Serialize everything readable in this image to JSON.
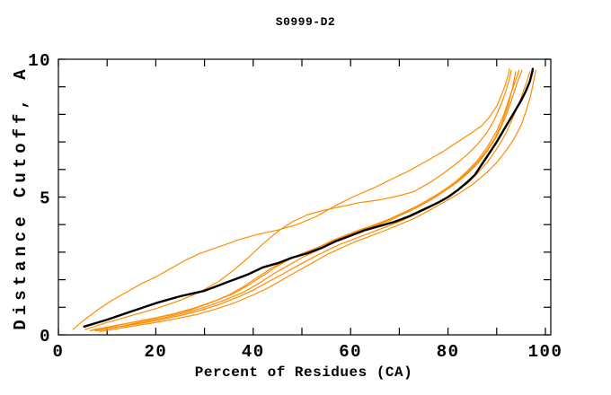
{
  "chart_data": {
    "type": "line",
    "title": "S0999-D2",
    "xlabel": "Percent of Residues (CA)",
    "ylabel": "Distance Cutoff, A",
    "xlim": [
      0,
      100
    ],
    "ylim": [
      0,
      10
    ],
    "xticks_major": [
      0,
      20,
      40,
      60,
      80,
      100
    ],
    "xticks_minor_step": 10,
    "yticks_major": [
      0,
      5,
      10
    ],
    "yticks_minor_step": 1,
    "grid": false,
    "legend": "none",
    "colors": {
      "model_curve": "#FF8C00",
      "reference_curve": "#000000",
      "axis": "#000000",
      "background": "#FFFFFF"
    },
    "series": [
      {
        "name": "orange-curve-1-outlier-high",
        "color": "#FF8C00",
        "stroke_width": 1.2,
        "points": [
          [
            3,
            0.2
          ],
          [
            5,
            0.5
          ],
          [
            8,
            0.9
          ],
          [
            11,
            1.25
          ],
          [
            14,
            1.55
          ],
          [
            17,
            1.85
          ],
          [
            20,
            2.1
          ],
          [
            23,
            2.4
          ],
          [
            26,
            2.7
          ],
          [
            29,
            2.95
          ],
          [
            33,
            3.2
          ],
          [
            37,
            3.45
          ],
          [
            41,
            3.65
          ],
          [
            45,
            3.8
          ],
          [
            49,
            4.0
          ],
          [
            53,
            4.3
          ],
          [
            57,
            4.7
          ],
          [
            61,
            5.05
          ],
          [
            65,
            5.35
          ],
          [
            69,
            5.7
          ],
          [
            72,
            5.95
          ],
          [
            76,
            6.35
          ],
          [
            79,
            6.65
          ],
          [
            82,
            7.0
          ],
          [
            85,
            7.35
          ],
          [
            87,
            7.6
          ],
          [
            88.5,
            7.9
          ],
          [
            90,
            8.3
          ],
          [
            91,
            8.7
          ],
          [
            91.8,
            9.1
          ],
          [
            92.4,
            9.45
          ],
          [
            92.6,
            9.65
          ]
        ]
      },
      {
        "name": "orange-curve-2",
        "color": "#FF8C00",
        "stroke_width": 1.2,
        "points": [
          [
            5.5,
            0.2
          ],
          [
            10,
            0.45
          ],
          [
            15,
            0.7
          ],
          [
            20,
            0.95
          ],
          [
            25,
            1.25
          ],
          [
            29,
            1.55
          ],
          [
            33,
            1.95
          ],
          [
            36,
            2.35
          ],
          [
            39,
            2.8
          ],
          [
            42,
            3.3
          ],
          [
            45,
            3.75
          ],
          [
            48,
            4.1
          ],
          [
            51,
            4.35
          ],
          [
            54,
            4.5
          ],
          [
            58,
            4.65
          ],
          [
            62,
            4.8
          ],
          [
            66,
            4.9
          ],
          [
            70,
            5.05
          ],
          [
            73,
            5.2
          ],
          [
            76,
            5.5
          ],
          [
            79,
            5.85
          ],
          [
            82,
            6.25
          ],
          [
            84,
            6.55
          ],
          [
            86,
            6.9
          ],
          [
            88,
            7.35
          ],
          [
            89.5,
            7.8
          ],
          [
            91,
            8.4
          ],
          [
            92,
            8.9
          ],
          [
            92.7,
            9.35
          ],
          [
            93,
            9.6
          ]
        ]
      },
      {
        "name": "orange-curve-3",
        "color": "#FF8C00",
        "stroke_width": 1.2,
        "points": [
          [
            6.5,
            0.15
          ],
          [
            11,
            0.3
          ],
          [
            15,
            0.45
          ],
          [
            19,
            0.58
          ],
          [
            23,
            0.72
          ],
          [
            27,
            0.9
          ],
          [
            31,
            1.15
          ],
          [
            35,
            1.45
          ],
          [
            38,
            1.75
          ],
          [
            41,
            2.1
          ],
          [
            44,
            2.45
          ],
          [
            47,
            2.7
          ],
          [
            50,
            2.95
          ],
          [
            53,
            3.15
          ],
          [
            56,
            3.4
          ],
          [
            59,
            3.62
          ],
          [
            62,
            3.82
          ],
          [
            65,
            4.0
          ],
          [
            68,
            4.2
          ],
          [
            71,
            4.45
          ],
          [
            74,
            4.7
          ],
          [
            77,
            5.0
          ],
          [
            80,
            5.35
          ],
          [
            82,
            5.6
          ],
          [
            84,
            5.9
          ],
          [
            86,
            6.25
          ],
          [
            88,
            6.7
          ],
          [
            89.5,
            7.1
          ],
          [
            91,
            7.65
          ],
          [
            92.3,
            8.3
          ],
          [
            93.3,
            9.0
          ],
          [
            93.9,
            9.55
          ]
        ]
      },
      {
        "name": "orange-curve-4",
        "color": "#FF8C00",
        "stroke_width": 1.2,
        "points": [
          [
            7,
            0.18
          ],
          [
            12,
            0.35
          ],
          [
            16,
            0.48
          ],
          [
            20,
            0.62
          ],
          [
            24,
            0.78
          ],
          [
            28,
            0.98
          ],
          [
            32,
            1.22
          ],
          [
            36,
            1.5
          ],
          [
            39,
            1.8
          ],
          [
            42,
            2.15
          ],
          [
            45,
            2.5
          ],
          [
            48,
            2.8
          ],
          [
            51,
            3.02
          ],
          [
            54,
            3.22
          ],
          [
            57,
            3.45
          ],
          [
            60,
            3.65
          ],
          [
            63,
            3.85
          ],
          [
            66,
            4.05
          ],
          [
            69,
            4.28
          ],
          [
            72,
            4.52
          ],
          [
            75,
            4.8
          ],
          [
            78,
            5.12
          ],
          [
            80,
            5.35
          ],
          [
            82,
            5.62
          ],
          [
            84,
            5.95
          ],
          [
            86,
            6.32
          ],
          [
            88,
            6.8
          ],
          [
            90,
            7.4
          ],
          [
            91.5,
            8.0
          ],
          [
            92.8,
            8.7
          ],
          [
            94,
            9.3
          ],
          [
            94.6,
            9.6
          ]
        ]
      },
      {
        "name": "orange-curve-5",
        "color": "#FF8C00",
        "stroke_width": 1.2,
        "points": [
          [
            8,
            0.15
          ],
          [
            13,
            0.32
          ],
          [
            18,
            0.5
          ],
          [
            22,
            0.63
          ],
          [
            26,
            0.8
          ],
          [
            30,
            1.0
          ],
          [
            34,
            1.25
          ],
          [
            38,
            1.55
          ],
          [
            41,
            1.85
          ],
          [
            44,
            2.2
          ],
          [
            47,
            2.5
          ],
          [
            50,
            2.8
          ],
          [
            53,
            3.05
          ],
          [
            56,
            3.3
          ],
          [
            59,
            3.55
          ],
          [
            62,
            3.75
          ],
          [
            65,
            3.95
          ],
          [
            68,
            4.15
          ],
          [
            71,
            4.4
          ],
          [
            74,
            4.65
          ],
          [
            77,
            4.95
          ],
          [
            80,
            5.3
          ],
          [
            82,
            5.55
          ],
          [
            84,
            5.85
          ],
          [
            86,
            6.2
          ],
          [
            88,
            6.65
          ],
          [
            90,
            7.2
          ],
          [
            91.8,
            7.9
          ],
          [
            93,
            8.5
          ],
          [
            94.2,
            9.15
          ],
          [
            95.2,
            9.6
          ]
        ]
      },
      {
        "name": "orange-curve-6",
        "color": "#FF8C00",
        "stroke_width": 1.2,
        "points": [
          [
            7.5,
            0.15
          ],
          [
            12,
            0.28
          ],
          [
            17,
            0.42
          ],
          [
            21,
            0.55
          ],
          [
            25,
            0.7
          ],
          [
            29,
            0.88
          ],
          [
            33,
            1.1
          ],
          [
            37,
            1.38
          ],
          [
            40,
            1.62
          ],
          [
            43,
            1.92
          ],
          [
            46,
            2.2
          ],
          [
            49,
            2.5
          ],
          [
            52,
            2.78
          ],
          [
            55,
            3.05
          ],
          [
            58,
            3.3
          ],
          [
            61,
            3.5
          ],
          [
            64,
            3.7
          ],
          [
            67,
            3.9
          ],
          [
            70,
            4.1
          ],
          [
            73,
            4.35
          ],
          [
            76,
            4.6
          ],
          [
            79,
            4.9
          ],
          [
            82,
            5.25
          ],
          [
            84,
            5.5
          ],
          [
            86,
            5.85
          ],
          [
            88,
            6.25
          ],
          [
            90,
            6.75
          ],
          [
            92,
            7.35
          ],
          [
            93.5,
            7.95
          ],
          [
            95,
            8.6
          ],
          [
            96.2,
            9.2
          ],
          [
            96.8,
            9.55
          ]
        ]
      },
      {
        "name": "orange-curve-7-lowest-right",
        "color": "#FF8C00",
        "stroke_width": 1.2,
        "points": [
          [
            8.5,
            0.12
          ],
          [
            14,
            0.28
          ],
          [
            19,
            0.42
          ],
          [
            24,
            0.58
          ],
          [
            28,
            0.72
          ],
          [
            32,
            0.92
          ],
          [
            36,
            1.15
          ],
          [
            40,
            1.45
          ],
          [
            43,
            1.7
          ],
          [
            46,
            2.0
          ],
          [
            49,
            2.3
          ],
          [
            52,
            2.6
          ],
          [
            55,
            2.9
          ],
          [
            58,
            3.15
          ],
          [
            61,
            3.38
          ],
          [
            64,
            3.58
          ],
          [
            67,
            3.78
          ],
          [
            70,
            4.0
          ],
          [
            73,
            4.22
          ],
          [
            76,
            4.5
          ],
          [
            79,
            4.8
          ],
          [
            82,
            5.1
          ],
          [
            85,
            5.45
          ],
          [
            88,
            5.9
          ],
          [
            90,
            6.25
          ],
          [
            92,
            6.7
          ],
          [
            93.5,
            7.1
          ],
          [
            95,
            7.6
          ],
          [
            96,
            8.1
          ],
          [
            97,
            8.7
          ],
          [
            97.7,
            9.3
          ],
          [
            98,
            9.6
          ]
        ]
      },
      {
        "name": "black-reference-curve",
        "color": "#000000",
        "stroke_width": 2.4,
        "points": [
          [
            5.3,
            0.3
          ],
          [
            10,
            0.55
          ],
          [
            15,
            0.85
          ],
          [
            20,
            1.15
          ],
          [
            25,
            1.4
          ],
          [
            30,
            1.6
          ],
          [
            33,
            1.8
          ],
          [
            36,
            2.0
          ],
          [
            39,
            2.2
          ],
          [
            42,
            2.45
          ],
          [
            45,
            2.6
          ],
          [
            48,
            2.8
          ],
          [
            51,
            2.95
          ],
          [
            54,
            3.15
          ],
          [
            57,
            3.4
          ],
          [
            60,
            3.6
          ],
          [
            63,
            3.8
          ],
          [
            66,
            3.95
          ],
          [
            69,
            4.1
          ],
          [
            72,
            4.3
          ],
          [
            75,
            4.55
          ],
          [
            78,
            4.8
          ],
          [
            80,
            5.0
          ],
          [
            82,
            5.25
          ],
          [
            84,
            5.55
          ],
          [
            85.5,
            5.8
          ],
          [
            87,
            6.2
          ],
          [
            88.5,
            6.6
          ],
          [
            90,
            7.0
          ],
          [
            91,
            7.3
          ],
          [
            92,
            7.6
          ],
          [
            93,
            7.9
          ],
          [
            94,
            8.2
          ],
          [
            95,
            8.5
          ],
          [
            96,
            8.85
          ],
          [
            96.8,
            9.2
          ],
          [
            97.3,
            9.55
          ],
          [
            97.4,
            9.65
          ]
        ]
      }
    ]
  }
}
